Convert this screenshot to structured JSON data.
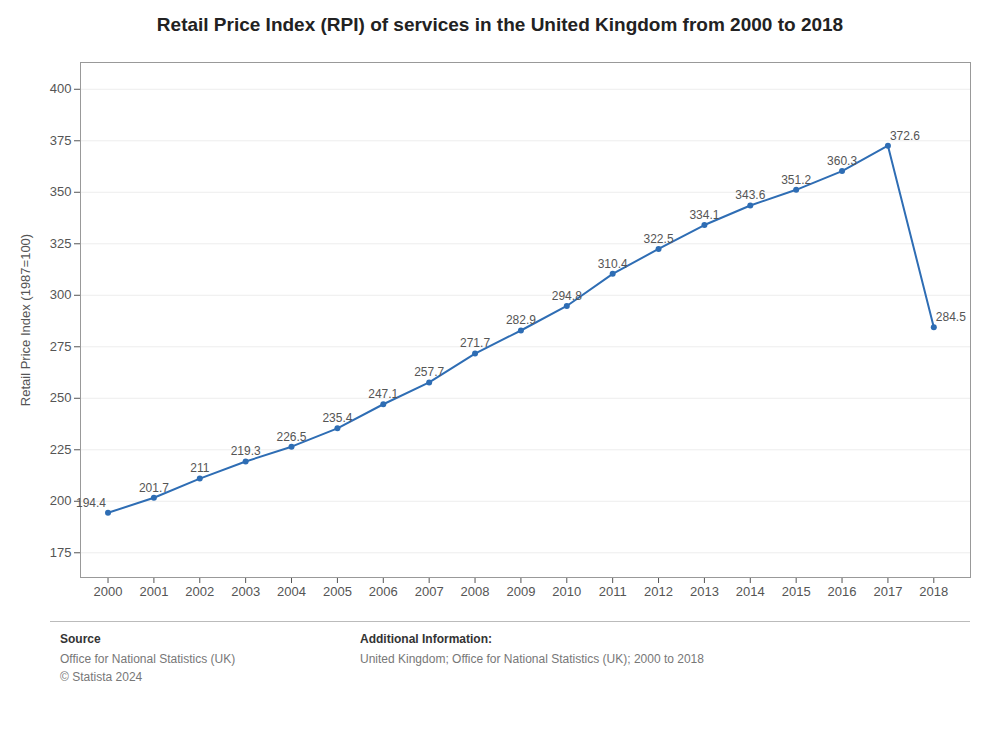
{
  "chart_data": {
    "type": "line",
    "title": "Retail Price Index (RPI) of services in the United Kingdom from 2000 to 2018",
    "ylabel": "Retail Price Index (1987=100)",
    "x": [
      2000,
      2001,
      2002,
      2003,
      2004,
      2005,
      2006,
      2007,
      2008,
      2009,
      2010,
      2011,
      2012,
      2013,
      2014,
      2015,
      2016,
      2017,
      2018
    ],
    "values": [
      194.4,
      201.7,
      211,
      219.3,
      226.5,
      235.4,
      247.1,
      257.7,
      271.7,
      282.9,
      294.8,
      310.4,
      322.5,
      334.1,
      343.6,
      351.2,
      360.3,
      372.6,
      284.5
    ],
    "color": "#2e6db4",
    "marker": "circle",
    "data_labels": true,
    "grid": true,
    "xlim": [
      1999.4,
      2018.8
    ],
    "xticks": [
      2000,
      2001,
      2002,
      2003,
      2004,
      2005,
      2006,
      2007,
      2008,
      2009,
      2010,
      2011,
      2012,
      2013,
      2014,
      2015,
      2016,
      2017,
      2018
    ],
    "ylim": [
      163,
      413
    ],
    "yticks": [
      175,
      200,
      225,
      250,
      275,
      300,
      325,
      350,
      375,
      400
    ],
    "annotations": [
      {
        "heading": "Source",
        "lines": [
          "Office for National Statistics (UK)",
          "© Statista 2024"
        ]
      },
      {
        "heading": "Additional Information:",
        "lines": [
          "United Kingdom; Office for National Statistics (UK); 2000 to 2018"
        ]
      }
    ]
  }
}
